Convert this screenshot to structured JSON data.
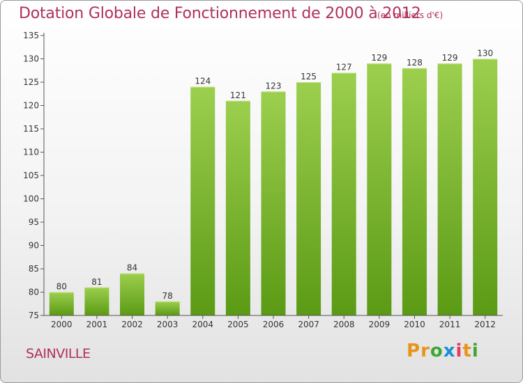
{
  "header": {
    "title": "Dotation Globale de Fonctionnement de 2000 à 2012",
    "unit": "(en milliers d'€)"
  },
  "footer": {
    "place": "SAINVILLE",
    "logo_letters": [
      "P",
      "r",
      "o",
      "x",
      "i",
      "t",
      "i"
    ],
    "logo_colors": [
      "#e8941a",
      "#e8941a",
      "#3fa535",
      "#1c8fd6",
      "#e83a5e",
      "#e8941a",
      "#3fa535"
    ]
  },
  "colors": {
    "title": "#b0305a",
    "bar_light": "#9ccf4e",
    "bar_dark": "#5b9a14",
    "axis": "#555555",
    "grid": "#cfcfcf"
  },
  "chart_data": {
    "type": "bar",
    "title": "Dotation Globale de Fonctionnement de 2000 à 2012",
    "subtitle": "(en milliers d'€)",
    "xlabel": "",
    "ylabel": "",
    "categories": [
      "2000",
      "2001",
      "2002",
      "2003",
      "2004",
      "2005",
      "2006",
      "2007",
      "2008",
      "2009",
      "2010",
      "2011",
      "2012"
    ],
    "values": [
      80,
      81,
      84,
      78,
      124,
      121,
      123,
      125,
      127,
      129,
      128,
      129,
      130
    ],
    "ylim": [
      75,
      135
    ],
    "yticks": [
      75,
      80,
      85,
      90,
      95,
      100,
      105,
      110,
      115,
      120,
      125,
      130,
      135
    ],
    "grid": false,
    "data_labels": true
  }
}
